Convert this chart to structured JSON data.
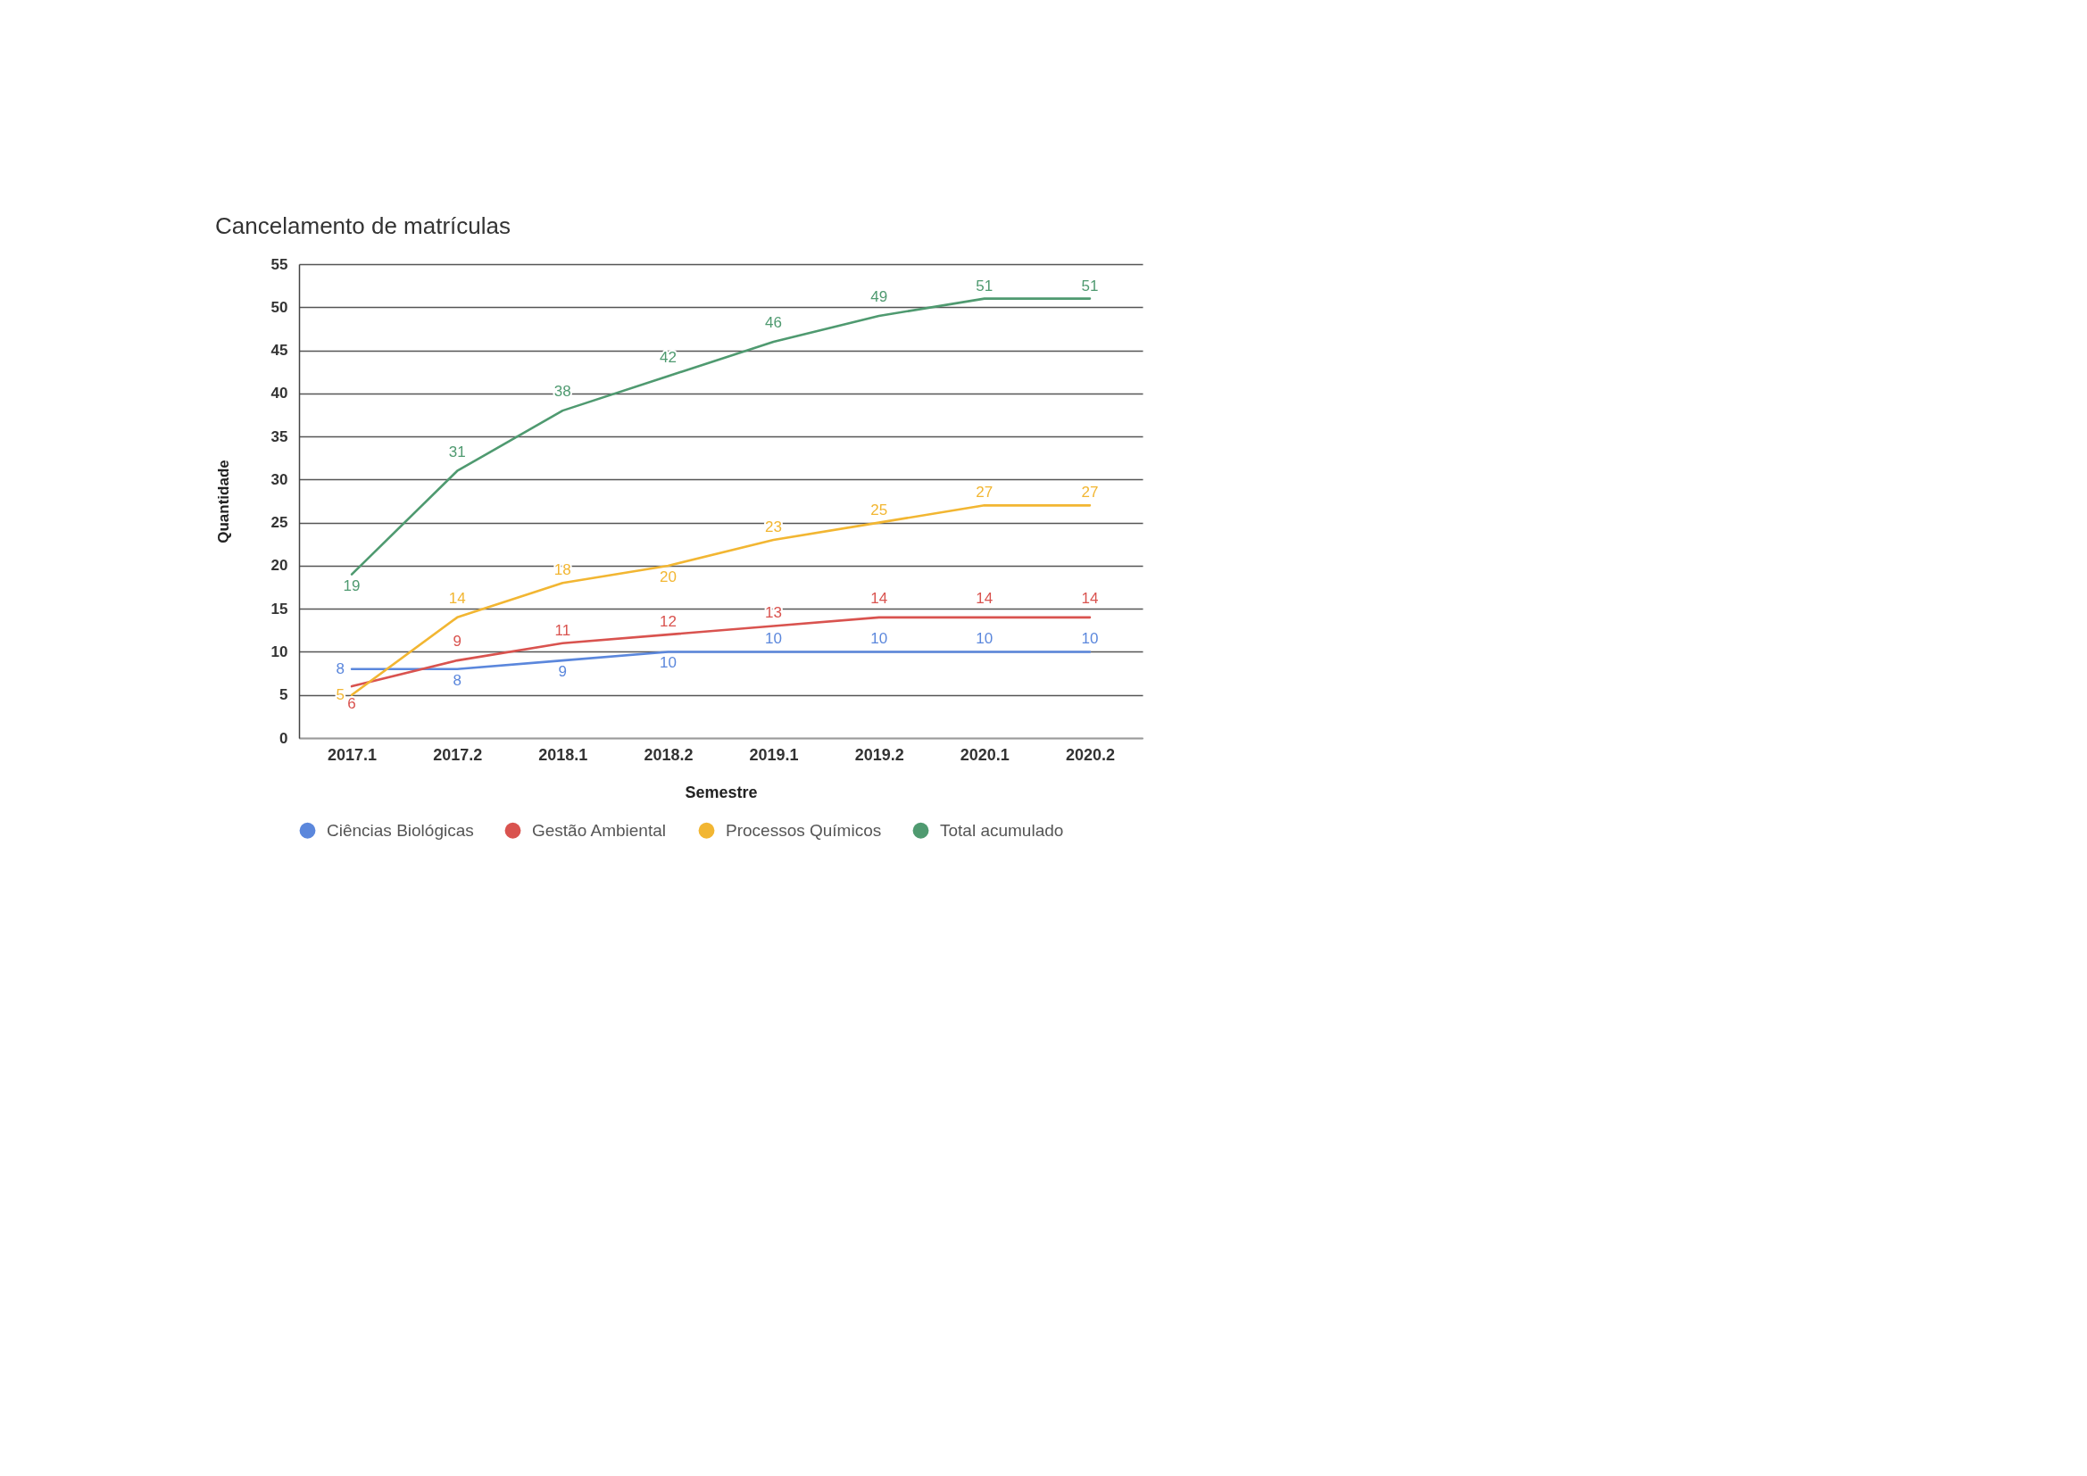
{
  "chart_data": {
    "type": "line",
    "title": "Cancelamento de matrículas",
    "xlabel": "Semestre",
    "ylabel": "Quantidade",
    "categories": [
      "2017.1",
      "2017.2",
      "2018.1",
      "2018.2",
      "2019.1",
      "2019.2",
      "2020.1",
      "2020.2"
    ],
    "series": [
      {
        "name": "Ciências Biológicas",
        "color": "#5b87dc",
        "values": [
          8,
          8,
          9,
          10,
          10,
          10,
          10,
          10
        ]
      },
      {
        "name": "Gestão Ambiental",
        "color": "#d9534f",
        "values": [
          6,
          9,
          11,
          12,
          13,
          14,
          14,
          14
        ]
      },
      {
        "name": "Processos Químicos",
        "color": "#f2b632",
        "values": [
          5,
          14,
          18,
          20,
          23,
          25,
          27,
          27
        ]
      },
      {
        "name": "Total acumulado",
        "color": "#4f9a70",
        "values": [
          19,
          31,
          38,
          42,
          46,
          49,
          51,
          51
        ]
      }
    ],
    "ylim": [
      0,
      55
    ],
    "yticks": [
      0,
      5,
      10,
      15,
      20,
      25,
      30,
      35,
      40,
      45,
      50,
      55
    ],
    "grid": "y",
    "legend": "bottom",
    "line_style": "solid",
    "data_labels": true
  }
}
